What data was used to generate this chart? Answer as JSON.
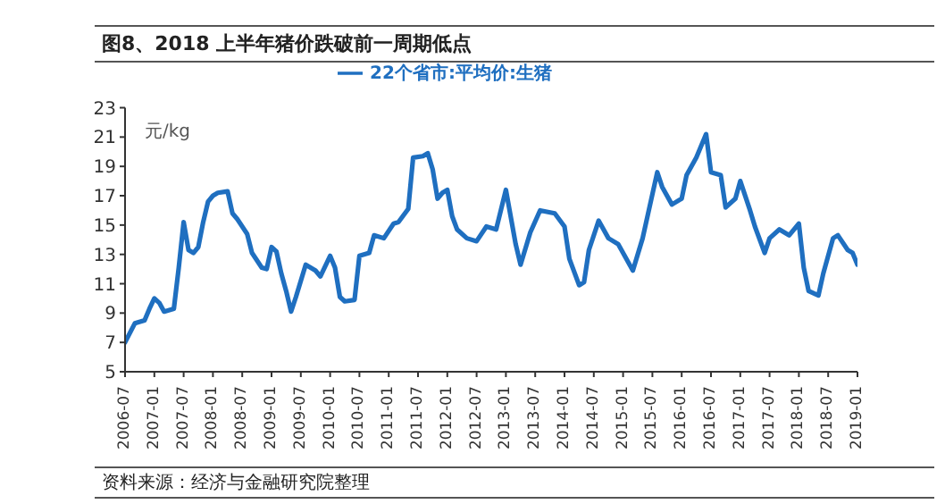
{
  "chart_data": {
    "type": "line",
    "title": "图8、2018 上半年猪价跌破前一周期低点",
    "ylabel": "元/kg",
    "annotations": [
      "资料来源：经济与金融研究院整理"
    ],
    "x": [
      "2006-07",
      "2006-09",
      "2006-11",
      "2006-12",
      "2007-01",
      "2007-02",
      "2007-03",
      "2007-05",
      "2007-06",
      "2007-07",
      "2007-08",
      "2007-09",
      "2007-10",
      "2007-11",
      "2007-12",
      "2008-01",
      "2008-02",
      "2008-04",
      "2008-05",
      "2008-06",
      "2008-08",
      "2008-09",
      "2008-11",
      "2008-12",
      "2009-01",
      "2009-02",
      "2009-03",
      "2009-04",
      "2009-05",
      "2009-06",
      "2009-08",
      "2009-10",
      "2009-11",
      "2010-01",
      "2010-02",
      "2010-03",
      "2010-04",
      "2010-06",
      "2010-07",
      "2010-09",
      "2010-10",
      "2010-12",
      "2011-02",
      "2011-03",
      "2011-05",
      "2011-06",
      "2011-08",
      "2011-09",
      "2011-10",
      "2011-11",
      "2011-12",
      "2012-01",
      "2012-02",
      "2012-03",
      "2012-05",
      "2012-07",
      "2012-09",
      "2012-11",
      "2013-01",
      "2013-03",
      "2013-04",
      "2013-06",
      "2013-08",
      "2013-11",
      "2014-01",
      "2014-02",
      "2014-04",
      "2014-05",
      "2014-06",
      "2014-08",
      "2014-10",
      "2014-12",
      "2015-03",
      "2015-05",
      "2015-08",
      "2015-09",
      "2015-11",
      "2016-01",
      "2016-02",
      "2016-04",
      "2016-06",
      "2016-07",
      "2016-09",
      "2016-10",
      "2016-12",
      "2017-01",
      "2017-03",
      "2017-04",
      "2017-06",
      "2017-07",
      "2017-09",
      "2017-11",
      "2018-01",
      "2018-02",
      "2018-03",
      "2018-05",
      "2018-06",
      "2018-08",
      "2018-09",
      "2018-11",
      "2018-12",
      "2019-01"
    ],
    "series": [
      {
        "name": "22个省市:平均价:生猪",
        "color": "#1f6fc0",
        "values": [
          7.0,
          8.3,
          8.5,
          9.3,
          10.0,
          9.7,
          9.1,
          9.3,
          12.1,
          15.2,
          13.3,
          13.1,
          13.5,
          15.2,
          16.6,
          17.0,
          17.2,
          17.3,
          15.8,
          15.4,
          14.4,
          13.1,
          12.1,
          12.0,
          13.5,
          13.2,
          11.7,
          10.5,
          9.1,
          10.1,
          12.3,
          11.9,
          11.5,
          12.9,
          12.1,
          10.1,
          9.8,
          9.9,
          12.9,
          13.1,
          14.3,
          14.1,
          15.1,
          15.2,
          16.1,
          19.6,
          19.7,
          19.9,
          18.8,
          16.8,
          17.2,
          17.4,
          15.6,
          14.7,
          14.1,
          13.9,
          14.9,
          14.7,
          17.4,
          13.7,
          12.3,
          14.5,
          16.0,
          15.8,
          14.9,
          12.7,
          10.9,
          11.1,
          13.3,
          15.3,
          14.1,
          13.7,
          11.9,
          14.1,
          18.6,
          17.6,
          16.4,
          16.8,
          18.4,
          19.6,
          21.2,
          18.6,
          18.4,
          16.2,
          16.8,
          18.0,
          16.0,
          14.9,
          13.1,
          14.1,
          14.7,
          14.3,
          15.1,
          12.1,
          10.5,
          10.2,
          11.7,
          14.1,
          14.3,
          13.3,
          13.1,
          12.3
        ]
      }
    ],
    "xlim": [
      "2006-07",
      "2019-01"
    ],
    "xticks": [
      "2006-07",
      "2007-01",
      "2007-07",
      "2008-01",
      "2008-07",
      "2009-01",
      "2009-07",
      "2010-01",
      "2010-07",
      "2011-01",
      "2011-07",
      "2012-01",
      "2012-07",
      "2013-01",
      "2013-07",
      "2014-01",
      "2014-07",
      "2015-01",
      "2015-07",
      "2016-01",
      "2016-07",
      "2017-01",
      "2017-07",
      "2018-01",
      "2018-07",
      "2019-01"
    ],
    "ylim": [
      5,
      23
    ],
    "yticks": [
      5,
      7,
      9,
      11,
      13,
      15,
      17,
      19,
      21,
      23
    ],
    "legend": "top",
    "grid": false,
    "marker": "none",
    "line_style": "solid"
  }
}
